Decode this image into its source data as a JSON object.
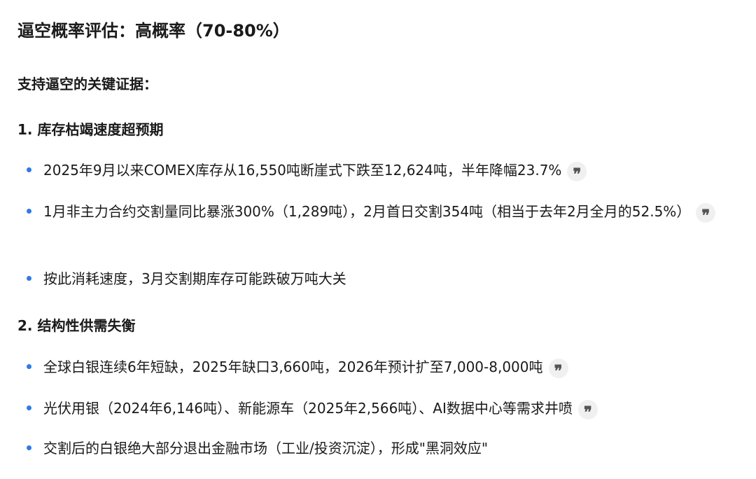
{
  "title": "逼空概率评估：高概率（70-80%）",
  "evidence_heading": "支持逼空的关键证据：",
  "sections": [
    {
      "heading": "1. 库存枯竭速度超预期",
      "items": [
        {
          "text": "2025年9月以来COMEX库存从16,550吨断崖式下跌至12,624吨，半年降幅23.7%",
          "citation": true
        },
        {
          "text": "1月非主力合约交割量同比暴涨300%（1,289吨），2月首日交割354吨（相当于去年2月全月的52.5%）",
          "citation": true
        },
        {
          "text": "按此消耗速度，3月交割期库存可能跌破万吨大关",
          "citation": false
        }
      ]
    },
    {
      "heading": "2. 结构性供需失衡",
      "items": [
        {
          "text": "全球白银连续6年短缺，2025年缺口3,660吨，2026年预计扩至7,000-8,000吨",
          "citation": true
        },
        {
          "text": "光伏用银（2024年6,146吨）、新能源车（2025年2,566吨）、AI数据中心等需求井喷",
          "citation": true
        },
        {
          "text": "交割后的白银绝大部分退出金融市场（工业/投资沉淀），形成\"黑洞效应\"",
          "citation": false
        }
      ]
    }
  ],
  "citation_glyph": "❞",
  "colors": {
    "bullet": "#2f7ae5",
    "text": "#1a1a1a",
    "citation_bg": "#f0f0f0"
  }
}
